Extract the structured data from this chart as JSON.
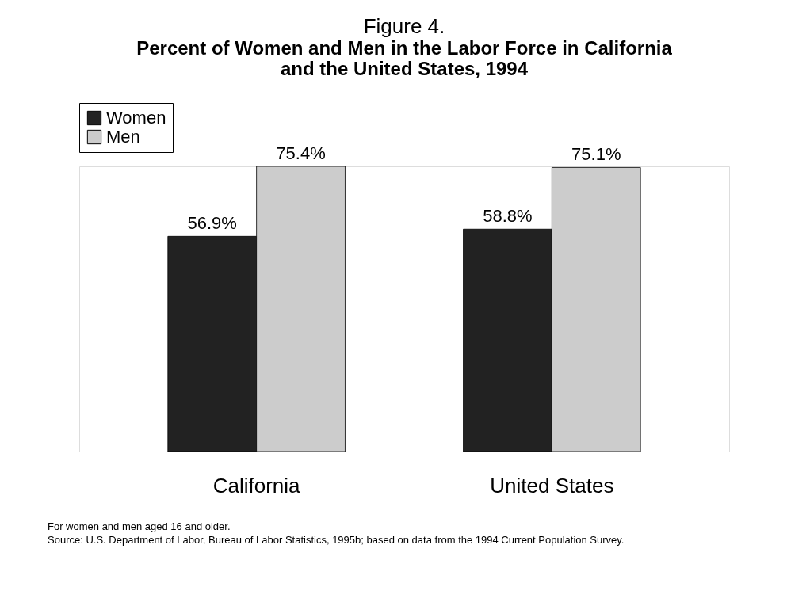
{
  "chart_data": {
    "type": "bar",
    "title": "Figure 4.",
    "subtitle": "Percent of Women and Men in the Labor Force in California and the United States, 1994",
    "categories": [
      "California",
      "United States"
    ],
    "series": [
      {
        "name": "Women",
        "color": "#222222",
        "values": [
          56.9,
          58.8
        ],
        "value_labels": [
          "56.9%",
          "58.8%"
        ]
      },
      {
        "name": "Men",
        "color": "#cccccc",
        "values": [
          75.4,
          75.1
        ],
        "value_labels": [
          "75.4%",
          "75.1%"
        ]
      }
    ],
    "legend": "top",
    "grid": false,
    "annotations": [
      "For women and men aged 16 and older.",
      "Source: U.S. Department of Labor, Bureau of Labor Statistics, 1995b; based on data from the 1994 Current Population Survey."
    ]
  }
}
